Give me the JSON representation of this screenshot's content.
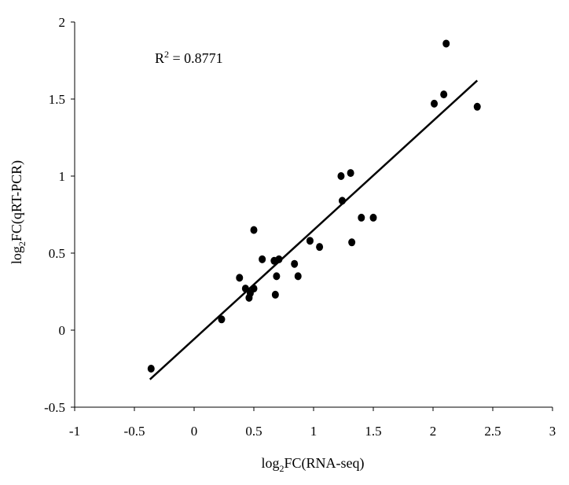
{
  "chart_data": {
    "type": "scatter",
    "title": "",
    "xlabel": {
      "prefix": "log",
      "sub": "2",
      "rest": "FC(RNA-seq)"
    },
    "ylabel": {
      "prefix": "log",
      "sub": "2",
      "rest": "FC(qRT-PCR)"
    },
    "xlim": [
      -1,
      3
    ],
    "ylim": [
      -0.5,
      2
    ],
    "x_ticks": [
      "-1",
      "-0.5",
      "0",
      "0.5",
      "1",
      "1.5",
      "2",
      "2.5",
      "3"
    ],
    "y_ticks": [
      "2",
      "1.5",
      "1",
      "0.5",
      "0",
      "-0.5"
    ],
    "x_tick_values": [
      -1,
      -0.5,
      0,
      0.5,
      1,
      1.5,
      2,
      2.5,
      3
    ],
    "y_tick_values": [
      2,
      1.5,
      1,
      0.5,
      0,
      -0.5
    ],
    "grid": false,
    "legend": "none",
    "annotation": {
      "prefix": "R",
      "sup": "2",
      "rest": " = 0.8771"
    },
    "trendline": {
      "x": [
        -0.37,
        2.37
      ],
      "y": [
        -0.32,
        1.62
      ]
    },
    "points": [
      {
        "x": -0.36,
        "y": -0.25
      },
      {
        "x": 0.23,
        "y": 0.07
      },
      {
        "x": 0.38,
        "y": 0.34
      },
      {
        "x": 0.43,
        "y": 0.27
      },
      {
        "x": 0.46,
        "y": 0.21
      },
      {
        "x": 0.47,
        "y": 0.24
      },
      {
        "x": 0.5,
        "y": 0.27
      },
      {
        "x": 0.5,
        "y": 0.65
      },
      {
        "x": 0.57,
        "y": 0.46
      },
      {
        "x": 0.67,
        "y": 0.45
      },
      {
        "x": 0.68,
        "y": 0.23
      },
      {
        "x": 0.69,
        "y": 0.35
      },
      {
        "x": 0.71,
        "y": 0.46
      },
      {
        "x": 0.84,
        "y": 0.43
      },
      {
        "x": 0.87,
        "y": 0.35
      },
      {
        "x": 0.97,
        "y": 0.58
      },
      {
        "x": 1.05,
        "y": 0.54
      },
      {
        "x": 1.23,
        "y": 1.0
      },
      {
        "x": 1.24,
        "y": 0.84
      },
      {
        "x": 1.31,
        "y": 1.02
      },
      {
        "x": 1.32,
        "y": 0.57
      },
      {
        "x": 1.4,
        "y": 0.73
      },
      {
        "x": 1.5,
        "y": 0.73
      },
      {
        "x": 2.01,
        "y": 1.47
      },
      {
        "x": 2.09,
        "y": 1.53
      },
      {
        "x": 2.11,
        "y": 1.86
      },
      {
        "x": 2.37,
        "y": 1.45
      }
    ]
  }
}
